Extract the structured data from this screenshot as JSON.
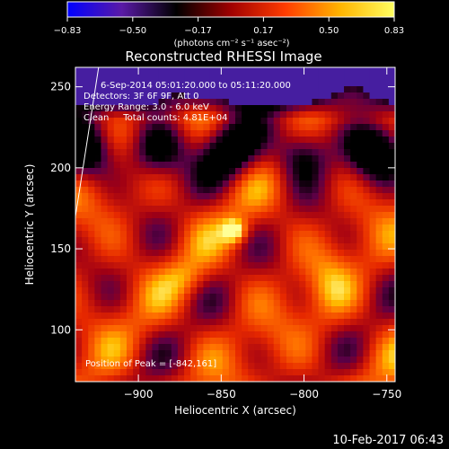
{
  "colorbar": {
    "ticks": [
      "−0.83",
      "−0.50",
      "−0.17",
      "0.17",
      "0.50",
      "0.83"
    ],
    "unit_label": "(photons cm⁻² s⁻¹ asec⁻²)",
    "colors": [
      "#0000ff",
      "#5a1aa6",
      "#000000",
      "#a00000",
      "#ff3c00",
      "#ffb400",
      "#ffff60"
    ]
  },
  "plot": {
    "title": "Reconstructed RHESSI Image",
    "info_lines": [
      "6-Sep-2014 05:01:20.000 to 05:11:20.000",
      "Detectors: 3F 6F 9F, Att 0",
      "Energy Range: 3.0 - 6.0 keV",
      "Clean     Total counts: 4.81E+04"
    ],
    "peak_text": "Position of Peak = [-842,161]"
  },
  "footer": {
    "timestamp": "10-Feb-2017 06:43"
  },
  "chart_data": {
    "type": "heatmap",
    "title": "Reconstructed RHESSI Image",
    "xlabel": "Heliocentric X (arcsec)",
    "ylabel": "Heliocentric Y (arcsec)",
    "xlim": [
      -938,
      -745
    ],
    "ylim": [
      68,
      262
    ],
    "x_ticks": [
      -900,
      -850,
      -800,
      -750
    ],
    "x_tick_labels": [
      "−900",
      "−850",
      "−800",
      "−750"
    ],
    "y_ticks": [
      100,
      150,
      200,
      250
    ],
    "y_tick_labels": [
      "100",
      "150",
      "200",
      "250"
    ],
    "value_range": [
      -0.83,
      0.83
    ],
    "value_unit": "photons cm^-2 s^-1 asec^-2",
    "peak": {
      "x": -842,
      "y": 161
    },
    "limb_line": [
      {
        "x": -938,
        "y": 170
      },
      {
        "x": -924,
        "y": 262
      }
    ]
  }
}
